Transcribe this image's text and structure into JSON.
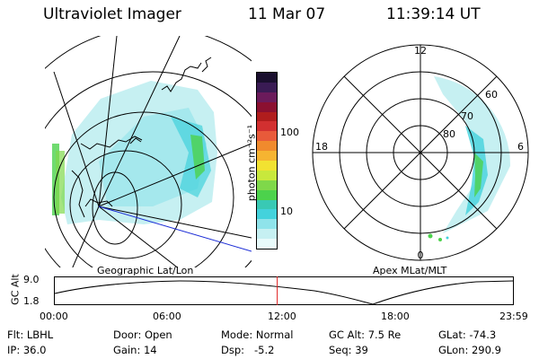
{
  "header": {
    "title": "Ultraviolet Imager",
    "date": "11 Mar 07",
    "time": "11:39:14 UT"
  },
  "colorbar": {
    "label": "photon cm⁻²s⁻¹",
    "ticks": [
      "100",
      "10"
    ],
    "colors": [
      "#1a0f2e",
      "#3a1b54",
      "#6b1b5b",
      "#8b1030",
      "#b01d1d",
      "#d23030",
      "#e85a3a",
      "#f08a2d",
      "#f6b431",
      "#f2e231",
      "#c8e83c",
      "#7fd84a",
      "#4cd24c",
      "#39c9b4",
      "#43d2dc",
      "#8fe3ea",
      "#c6f0f2",
      "#e8fafa"
    ]
  },
  "polar_plot": {
    "mlt_labels": [
      "12",
      "18",
      "6",
      "0"
    ],
    "lat_labels": [
      "60",
      "70",
      "80"
    ],
    "footer_label": "Apex MLat/MLT"
  },
  "geo_plot": {
    "footer_label": "Geographic Lat/Lon"
  },
  "timeline": {
    "axis_label": "GC Alt",
    "y_ticks": [
      "9.0",
      "1.8"
    ],
    "x_ticks": [
      "00:00",
      "06:00",
      "12:00",
      "18:00",
      "23:59"
    ],
    "marker_time": "11:39:14",
    "marker_fraction": 0.4856
  },
  "info": {
    "flt": "Flt: LBHL",
    "ip": "IP: 36.0",
    "door": "Door: Open",
    "gain": "Gain: 14",
    "mode": "Mode: Normal",
    "dsp": "Dsp:   -5.2",
    "gc_alt": "GC Alt: 7.5 Re",
    "seq": "Seq: 39",
    "glat": "GLat: -74.3",
    "glon": "GLon: 290.9"
  }
}
